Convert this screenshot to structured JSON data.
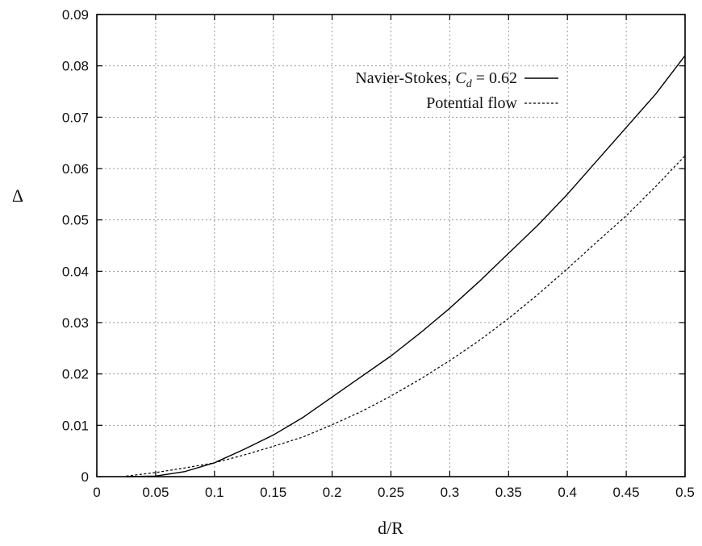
{
  "chart_data": {
    "type": "line",
    "xlabel": "d/R",
    "ylabel": "Δ",
    "xlim": [
      0,
      0.5
    ],
    "ylim": [
      0,
      0.09
    ],
    "grid": true,
    "legend_position": "top-right",
    "x_ticks": [
      "0",
      "0.05",
      "0.1",
      "0.15",
      "0.2",
      "0.25",
      "0.3",
      "0.35",
      "0.4",
      "0.45",
      "0.5"
    ],
    "y_ticks": [
      "0",
      "0.01",
      "0.02",
      "0.03",
      "0.04",
      "0.05",
      "0.06",
      "0.07",
      "0.08",
      "0.09"
    ],
    "series": [
      {
        "name": "Navier-Stokes, Cd = 0.62",
        "legend_prefix": "Navier-Stokes, ",
        "legend_math_base": "C",
        "legend_math_sub": "d",
        "legend_suffix": " = 0.62",
        "style": "solid",
        "color": "#000000",
        "x": [
          0.025,
          0.05,
          0.075,
          0.1,
          0.125,
          0.15,
          0.175,
          0.2,
          0.225,
          0.25,
          0.275,
          0.3,
          0.325,
          0.35,
          0.375,
          0.4,
          0.425,
          0.45,
          0.475,
          0.5
        ],
        "y": [
          0.0,
          0.0001,
          0.001,
          0.0027,
          0.0053,
          0.0081,
          0.0115,
          0.0155,
          0.0195,
          0.0235,
          0.028,
          0.0328,
          0.038,
          0.0435,
          0.049,
          0.055,
          0.0615,
          0.068,
          0.0745,
          0.082
        ]
      },
      {
        "name": "Potential flow",
        "legend_prefix": "Potential flow",
        "style": "dashed",
        "color": "#000000",
        "x": [
          0.025,
          0.05,
          0.075,
          0.1,
          0.125,
          0.15,
          0.175,
          0.2,
          0.225,
          0.25,
          0.275,
          0.3,
          0.325,
          0.35,
          0.375,
          0.4,
          0.425,
          0.45,
          0.475,
          0.5
        ],
        "y": [
          0.0001,
          0.0008,
          0.0017,
          0.0027,
          0.0042,
          0.0059,
          0.0077,
          0.0101,
          0.0127,
          0.0157,
          0.019,
          0.0226,
          0.0265,
          0.0308,
          0.0355,
          0.0405,
          0.0457,
          0.0508,
          0.0565,
          0.0625
        ]
      }
    ]
  }
}
